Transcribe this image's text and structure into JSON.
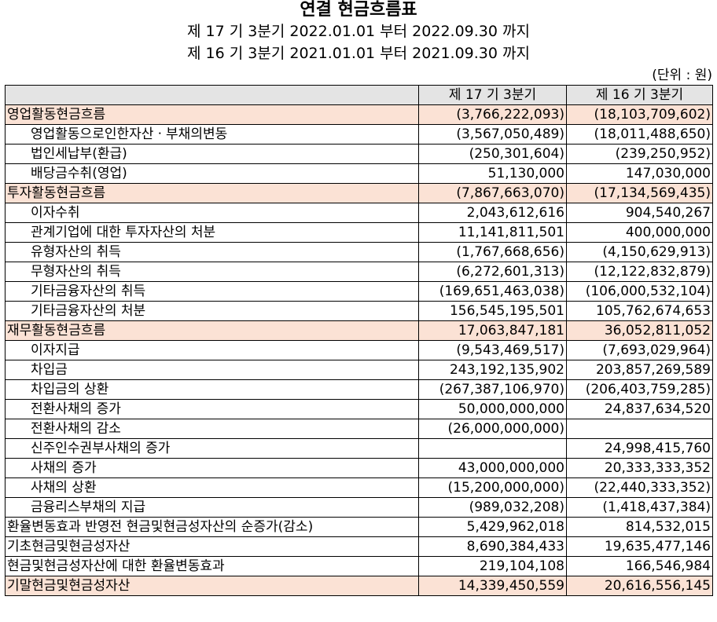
{
  "title": "연결 현금흐름표",
  "period_current": "제 17 기 3분기 2022.01.01 부터 2022.09.30 까지",
  "period_prior": "제 16 기 3분기 2021.01.01 부터 2021.09.30 까지",
  "unit": "(단위 : 원)",
  "columns": [
    "",
    "제 17 기 3분기",
    "제 16 기 3분기"
  ],
  "rows": [
    {
      "label": "영업활동현금흐름",
      "cur": "(3,766,222,093)",
      "prev": "(18,103,709,602)",
      "kind": "section"
    },
    {
      "label": "영업활동으로인한자산ㆍ부채의변동",
      "cur": "(3,567,050,489)",
      "prev": "(18,011,488,650)",
      "kind": "item"
    },
    {
      "label": "법인세납부(환급)",
      "cur": "(250,301,604)",
      "prev": "(239,250,952)",
      "kind": "item"
    },
    {
      "label": "배당금수취(영업)",
      "cur": "51,130,000",
      "prev": "147,030,000",
      "kind": "item"
    },
    {
      "label": "투자활동현금흐름",
      "cur": "(7,867,663,070)",
      "prev": "(17,134,569,435)",
      "kind": "section"
    },
    {
      "label": "이자수취",
      "cur": "2,043,612,616",
      "prev": "904,540,267",
      "kind": "item"
    },
    {
      "label": "관계기업에 대한 투자자산의 처분",
      "cur": "11,141,811,501",
      "prev": "400,000,000",
      "kind": "item"
    },
    {
      "label": "유형자산의 취득",
      "cur": "(1,767,668,656)",
      "prev": "(4,150,629,913)",
      "kind": "item"
    },
    {
      "label": "무형자산의 취득",
      "cur": "(6,272,601,313)",
      "prev": "(12,122,832,879)",
      "kind": "item"
    },
    {
      "label": "기타금융자산의 취득",
      "cur": "(169,651,463,038)",
      "prev": "(106,000,532,104)",
      "kind": "item"
    },
    {
      "label": "기타금융자산의 처분",
      "cur": "156,545,195,501",
      "prev": "105,762,674,653",
      "kind": "item"
    },
    {
      "label": "재무활동현금흐름",
      "cur": "17,063,847,181",
      "prev": "36,052,811,052",
      "kind": "section"
    },
    {
      "label": "이자지급",
      "cur": "(9,543,469,517)",
      "prev": "(7,693,029,964)",
      "kind": "item"
    },
    {
      "label": "차입금",
      "cur": "243,192,135,902",
      "prev": "203,857,269,589",
      "kind": "item"
    },
    {
      "label": "차입금의 상환",
      "cur": "(267,387,106,970)",
      "prev": "(206,403,759,285)",
      "kind": "item"
    },
    {
      "label": "전환사채의 증가",
      "cur": "50,000,000,000",
      "prev": "24,837,634,520",
      "kind": "item"
    },
    {
      "label": "전환사채의 감소",
      "cur": "(26,000,000,000)",
      "prev": "",
      "kind": "item"
    },
    {
      "label": "신주인수권부사채의 증가",
      "cur": "",
      "prev": "24,998,415,760",
      "kind": "item"
    },
    {
      "label": "사채의 증가",
      "cur": "43,000,000,000",
      "prev": "20,333,333,352",
      "kind": "item"
    },
    {
      "label": "사채의 상환",
      "cur": "(15,200,000,000)",
      "prev": "(22,440,333,352)",
      "kind": "item"
    },
    {
      "label": "금융리스부채의 지급",
      "cur": "(989,032,208)",
      "prev": "(1,418,437,384)",
      "kind": "item"
    },
    {
      "label": "환율변동효과 반영전 현금및현금성자산의 순증가(감소)",
      "cur": "5,429,962,018",
      "prev": "814,532,015",
      "kind": "plain"
    },
    {
      "label": "기초현금및현금성자산",
      "cur": "8,690,384,433",
      "prev": "19,635,477,146",
      "kind": "plain"
    },
    {
      "label": "현금및현금성자산에 대한 환율변동효과",
      "cur": "219,104,108",
      "prev": "166,546,984",
      "kind": "plain"
    },
    {
      "label": "기말현금및현금성자산",
      "cur": "14,339,450,559",
      "prev": "20,616,556,145",
      "kind": "section"
    }
  ]
}
